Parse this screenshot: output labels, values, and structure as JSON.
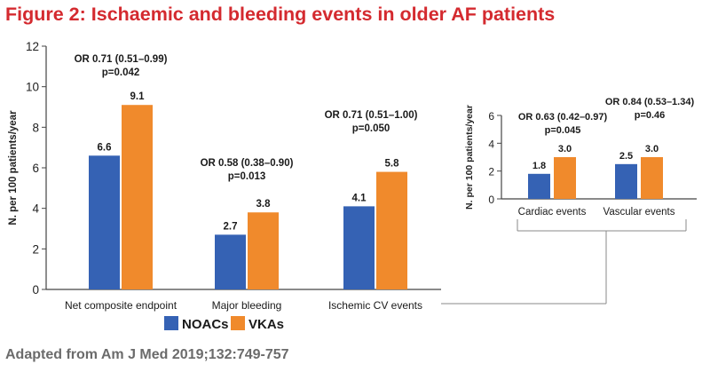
{
  "title": "Figure 2: Ischaemic and bleeding events in older AF patients",
  "source": "Adapted from Am J Med 2019;132:749-757",
  "colors": {
    "NOACs": "#3562b4",
    "VKAs": "#f08a2c",
    "title": "#d42a2f",
    "source": "#6b6b6b",
    "axis": "#444444"
  },
  "chart_data": [
    {
      "type": "bar",
      "ylabel": "N. per 100 patients/year",
      "ylim": [
        0,
        12
      ],
      "yticks": [
        "0",
        "2",
        "4",
        "6",
        "8",
        "10",
        "12"
      ],
      "categories": [
        "Net composite endpoint",
        "Major bleeding",
        "Ischemic CV events"
      ],
      "series": [
        {
          "name": "NOACs",
          "values": [
            6.6,
            2.7,
            4.1
          ],
          "labels": [
            "6.6",
            "2.7",
            "4.1"
          ]
        },
        {
          "name": "VKAs",
          "values": [
            9.1,
            3.8,
            5.8
          ],
          "labels": [
            "9.1",
            "3.8",
            "5.8"
          ]
        }
      ],
      "annotations": [
        {
          "or": "OR 0.71 (0.51–0.99)",
          "p": "p=0.042"
        },
        {
          "or": "OR 0.58 (0.38–0.90)",
          "p": "p=0.013"
        },
        {
          "or": "OR 0.71 (0.51–1.00)",
          "p": "p=0.050"
        }
      ],
      "legend": {
        "position": "bottom",
        "entries": [
          "NOACs",
          "VKAs"
        ]
      },
      "grid": false
    },
    {
      "type": "bar",
      "ylabel": "N. per 100 patients/year",
      "ylim": [
        0,
        6
      ],
      "yticks": [
        "0",
        "2",
        "4",
        "6"
      ],
      "categories": [
        "Cardiac events",
        "Vascular events"
      ],
      "series": [
        {
          "name": "NOACs",
          "values": [
            1.8,
            2.5
          ],
          "labels": [
            "1.8",
            "2.5"
          ]
        },
        {
          "name": "VKAs",
          "values": [
            3.0,
            3.0
          ],
          "labels": [
            "3.0",
            "3.0"
          ]
        }
      ],
      "annotations": [
        {
          "or": "OR 0.63 (0.42–0.97)",
          "p": "p=0.045"
        },
        {
          "or": "OR 0.84 (0.53–1.34)",
          "p": "p=0.46"
        }
      ],
      "grid": false,
      "breakdown_of": "Ischemic CV events"
    }
  ]
}
